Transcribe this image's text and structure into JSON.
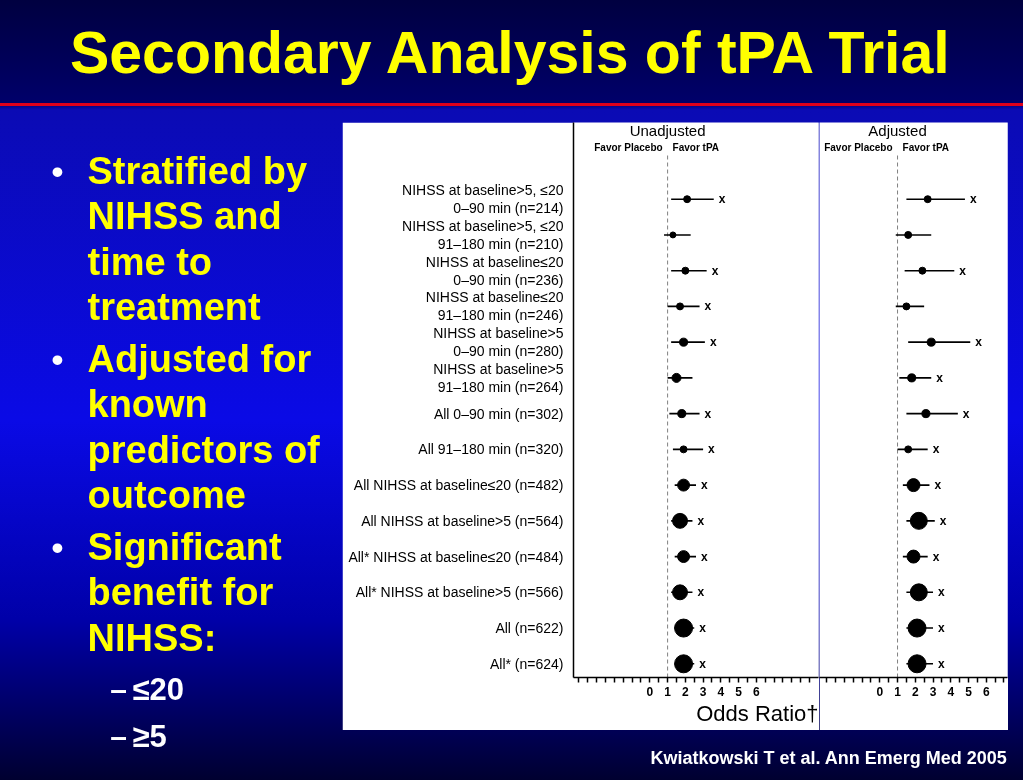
{
  "chart_data": [
    {
      "type": "other",
      "title": "Secondary Analysis of tPA Trial",
      "annotations": [
        "• Stratified by NIHSS and time to treatment",
        "• Adjusted for known predictors of outcome",
        "• Significant benefit for NIHSS:",
        "– ≤20",
        "– ≥5",
        "Kwiatkowski T et al. Ann Emerg Med 2005"
      ]
    },
    {
      "type": "bubble",
      "title": "Unadjusted",
      "orientation": "horizontal",
      "xlabel": "Odds Ratio†",
      "categories": [
        "NIHSS at baseline>5, ≤20\n0–90 min (n=214)",
        "NIHSS at baseline>5, ≤20\n91–180 min (n=210)",
        "NIHSS at baseline≤20\n0–90 min (n=236)",
        "NIHSS at baseline≤20\n91–180 min (n=246)",
        "NIHSS at baseline>5\n0–90 min (n=280)",
        "NIHSS at baseline>5\n91–180 min (n=264)",
        "All 0–90 min (n=302)",
        "All 91–180 min (n=320)",
        "All NIHSS at baseline≤20 (n=482)",
        "All NIHSS at baseline>5 (n=564)",
        "All* NIHSS at baseline≤20 (n=484)",
        "All* NIHSS at baseline>5 (n=566)",
        "All (n=622)",
        "All* (n=624)"
      ],
      "xlim": [
        -4.3,
        9.5
      ],
      "xticks": [
        {
          "value": -4,
          "label": null
        },
        {
          "value": -3.5,
          "label": null
        },
        {
          "value": -3,
          "label": null
        },
        {
          "value": -2.5,
          "label": null
        },
        {
          "value": -2,
          "label": null
        },
        {
          "value": -1.5,
          "label": null
        },
        {
          "value": -1,
          "label": null
        },
        {
          "value": -0.5,
          "label": null
        },
        0,
        {
          "value": 0.5,
          "label": null
        },
        1,
        {
          "value": 1.5,
          "label": null
        },
        2,
        {
          "value": 2.5,
          "label": null
        },
        3,
        {
          "value": 3.5,
          "label": null
        },
        4,
        {
          "value": 4.5,
          "label": null
        },
        5,
        {
          "value": 5.5,
          "label": null
        },
        6,
        {
          "value": 6.5,
          "label": null
        },
        {
          "value": 7,
          "label": null
        },
        {
          "value": 7.5,
          "label": null
        },
        {
          "value": 8,
          "label": null
        },
        {
          "value": 8.5,
          "label": null
        },
        {
          "value": 9,
          "label": null
        }
      ],
      "ref_lines": [
        {
          "axis": "x",
          "value": 1,
          "color": "#808080",
          "line_style": "dashed"
        }
      ],
      "annotations": [
        "Favor Placebo",
        "Favor tPA",
        {
          "text": "x",
          "x": 3.6,
          "y": "NIHSS at baseline>5, ≤20\n0–90 min (n=214)"
        },
        {
          "text": "x",
          "x": 3.2,
          "y": "NIHSS at baseline≤20\n0–90 min (n=236)"
        },
        {
          "text": "x",
          "x": 2.8,
          "y": "NIHSS at baseline≤20\n91–180 min (n=246)"
        },
        {
          "text": "x",
          "x": 3.1,
          "y": "NIHSS at baseline>5\n0–90 min (n=280)"
        },
        {
          "text": "x",
          "x": 2.8,
          "y": "All 0–90 min (n=302)"
        },
        {
          "text": "x",
          "x": 3.0,
          "y": "All 91–180 min (n=320)"
        },
        {
          "text": "x",
          "x": 2.6,
          "y": "All NIHSS at baseline≤20 (n=482)"
        },
        {
          "text": "x",
          "x": 2.4,
          "y": "All NIHSS at baseline>5 (n=564)"
        },
        {
          "text": "x",
          "x": 2.6,
          "y": "All* NIHSS at baseline≤20 (n=484)"
        },
        {
          "text": "x",
          "x": 2.4,
          "y": "All* NIHSS at baseline>5 (n=566)"
        },
        {
          "text": "x",
          "x": 2.5,
          "y": "All (n=622)"
        },
        {
          "text": "x",
          "x": 2.5,
          "y": "All* (n=624)"
        }
      ],
      "series": [
        {
          "type": "bubble",
          "color": "#000000",
          "values": [
            2.1,
            1.3,
            2.0,
            1.7,
            1.9,
            1.5,
            1.8,
            1.9,
            1.9,
            1.7,
            1.9,
            1.7,
            1.9,
            1.9
          ],
          "errors": [
            [
              1.2,
              3.6
            ],
            [
              0.8,
              2.3
            ],
            [
              1.2,
              3.2
            ],
            [
              1.0,
              2.8
            ],
            [
              1.2,
              3.1
            ],
            [
              1.0,
              2.4
            ],
            [
              1.1,
              2.8
            ],
            [
              1.3,
              3.0
            ],
            [
              1.4,
              2.6
            ],
            [
              1.2,
              2.4
            ],
            [
              1.4,
              2.6
            ],
            [
              1.2,
              2.4
            ],
            [
              1.4,
              2.5
            ],
            [
              1.4,
              2.5
            ]
          ],
          "sizes": [
            0.15,
            0.11,
            0.15,
            0.15,
            0.2,
            0.25,
            0.2,
            0.15,
            0.44,
            0.69,
            0.44,
            0.69,
            1,
            1
          ]
        }
      ]
    },
    {
      "type": "bubble",
      "title": "Adjusted",
      "orientation": "horizontal",
      "tick_labels": "x",
      "categories": [
        "NIHSS at baseline>5, ≤20\n0–90 min (n=214)",
        "NIHSS at baseline>5, ≤20\n91–180 min (n=210)",
        "NIHSS at baseline≤20\n0–90 min (n=236)",
        "NIHSS at baseline≤20\n91–180 min (n=246)",
        "NIHSS at baseline>5\n0–90 min (n=280)",
        "NIHSS at baseline>5\n91–180 min (n=264)",
        "All 0–90 min (n=302)",
        "All 91–180 min (n=320)",
        "All NIHSS at baseline≤20 (n=482)",
        "All NIHSS at baseline>5 (n=564)",
        "All* NIHSS at baseline≤20 (n=484)",
        "All* NIHSS at baseline>5 (n=566)",
        "All (n=622)",
        "All* (n=624)"
      ],
      "xlim": [
        -3.4,
        7.2
      ],
      "xticks": [
        {
          "value": -3,
          "label": null
        },
        {
          "value": -2.5,
          "label": null
        },
        {
          "value": -2,
          "label": null
        },
        {
          "value": -1.5,
          "label": null
        },
        {
          "value": -1,
          "label": null
        },
        {
          "value": -0.5,
          "label": null
        },
        0,
        {
          "value": 0.5,
          "label": null
        },
        1,
        {
          "value": 1.5,
          "label": null
        },
        2,
        {
          "value": 2.5,
          "label": null
        },
        3,
        {
          "value": 3.5,
          "label": null
        },
        4,
        {
          "value": 4.5,
          "label": null
        },
        5,
        {
          "value": 5.5,
          "label": null
        },
        6,
        {
          "value": 6.5,
          "label": null
        },
        {
          "value": 7,
          "label": null
        }
      ],
      "ref_lines": [
        {
          "axis": "x",
          "value": 1,
          "color": "#808080",
          "line_style": "dashed"
        }
      ],
      "annotations": [
        "Favor Placebo",
        "Favor tPA",
        {
          "text": "x",
          "x": 4.8,
          "y": "NIHSS at baseline>5, ≤20\n0–90 min (n=214)"
        },
        {
          "text": "x",
          "x": 4.2,
          "y": "NIHSS at baseline≤20\n0–90 min (n=236)"
        },
        {
          "text": "x",
          "x": 5.1,
          "y": "NIHSS at baseline>5\n0–90 min (n=280)"
        },
        {
          "text": "x",
          "x": 2.9,
          "y": "NIHSS at baseline>5\n91–180 min (n=264)"
        },
        {
          "text": "x",
          "x": 4.4,
          "y": "All 0–90 min (n=302)"
        },
        {
          "text": "x",
          "x": 2.7,
          "y": "All 91–180 min (n=320)"
        },
        {
          "text": "x",
          "x": 2.8,
          "y": "All NIHSS at baseline≤20 (n=482)"
        },
        {
          "text": "x",
          "x": 3.1,
          "y": "All NIHSS at baseline>5 (n=564)"
        },
        {
          "text": "x",
          "x": 2.7,
          "y": "All* NIHSS at baseline≤20 (n=484)"
        },
        {
          "text": "x",
          "x": 3.0,
          "y": "All* NIHSS at baseline>5 (n=566)"
        },
        {
          "text": "x",
          "x": 3.0,
          "y": "All (n=622)"
        },
        {
          "text": "x",
          "x": 3.0,
          "y": "All* (n=624)"
        }
      ],
      "series": [
        {
          "type": "bubble",
          "color": "#000000",
          "values": [
            2.7,
            1.6,
            2.4,
            1.5,
            2.9,
            1.8,
            2.6,
            1.6,
            1.9,
            2.2,
            1.9,
            2.2,
            2.1,
            2.1
          ],
          "errors": [
            [
              1.5,
              4.8
            ],
            [
              0.9,
              2.9
            ],
            [
              1.4,
              4.2
            ],
            [
              0.9,
              2.5
            ],
            [
              1.6,
              5.1
            ],
            [
              1.1,
              2.9
            ],
            [
              1.5,
              4.4
            ],
            [
              1.0,
              2.7
            ],
            [
              1.3,
              2.8
            ],
            [
              1.5,
              3.1
            ],
            [
              1.3,
              2.7
            ],
            [
              1.5,
              3.0
            ],
            [
              1.5,
              3.0
            ],
            [
              1.5,
              3.0
            ]
          ],
          "sizes": [
            0.15,
            0.15,
            0.15,
            0.15,
            0.2,
            0.2,
            0.2,
            0.15,
            0.52,
            0.89,
            0.52,
            0.89,
            1,
            1
          ]
        }
      ]
    }
  ]
}
